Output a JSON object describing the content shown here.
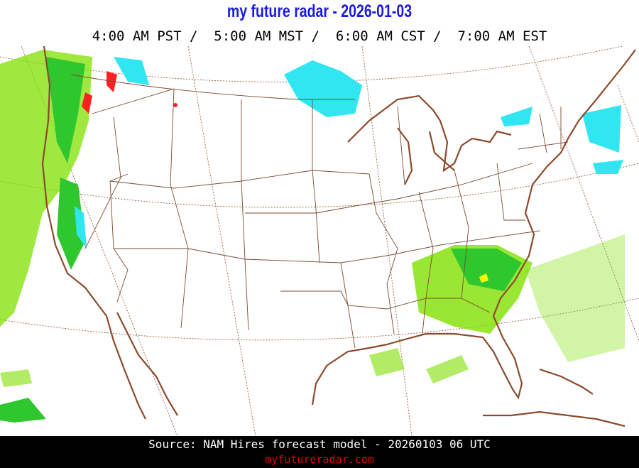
{
  "header": {
    "title": "my future radar - 2026-01-03",
    "times": "4:00 AM PST /  5:00 AM MST /  6:00 AM CST /  7:00 AM EST"
  },
  "map": {
    "region": "Continental United States",
    "colors": {
      "coastline": "#8b4a2b",
      "borders": "#7a4a30",
      "graticule": "#8b4a2b",
      "rain_light": "#7fe000",
      "rain_moderate": "#2ec82e",
      "rain_heavy": "#ffff00",
      "snow": "#30e6f0",
      "mixed": "#ff2020"
    }
  },
  "footer": {
    "source": "Source: NAM Hires forecast model - 20260103 06 UTC",
    "site": "myfutureradar.com"
  }
}
